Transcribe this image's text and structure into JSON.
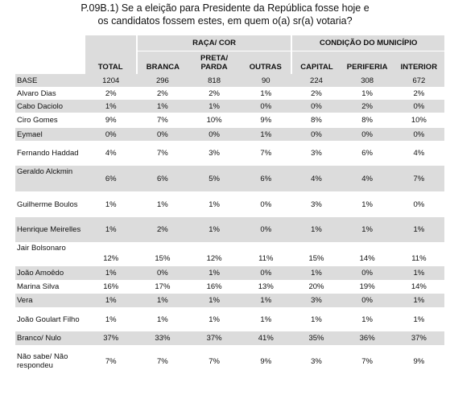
{
  "question": {
    "line1": "P.09B.1) Se a eleição para Presidente da República fosse hoje e",
    "line2": "os candidatos fossem estes, em quem o(a) sr(a) votaria?"
  },
  "header": {
    "group_raca": "RAÇA/ COR",
    "group_municipio": "CONDIÇÃO DO MUNICÍPIO",
    "columns": [
      "TOTAL",
      "BRANCA",
      "PRETA/ PARDA",
      "OUTRAS",
      "CAPITAL",
      "PERIFERIA",
      "INTERIOR"
    ]
  },
  "rows": [
    {
      "label": "BASE",
      "values": [
        "1204",
        "296",
        "818",
        "90",
        "224",
        "308",
        "672"
      ]
    },
    {
      "label": "Alvaro Dias",
      "values": [
        "2%",
        "2%",
        "2%",
        "1%",
        "2%",
        "1%",
        "2%"
      ]
    },
    {
      "label": "Cabo Daciolo",
      "values": [
        "1%",
        "1%",
        "1%",
        "0%",
        "0%",
        "2%",
        "0%"
      ]
    },
    {
      "label": "Ciro Gomes",
      "values": [
        "9%",
        "7%",
        "10%",
        "9%",
        "8%",
        "8%",
        "10%"
      ]
    },
    {
      "label": "Eymael",
      "values": [
        "0%",
        "0%",
        "0%",
        "1%",
        "0%",
        "0%",
        "0%"
      ]
    },
    {
      "label": "Fernando Haddad",
      "values": [
        "4%",
        "7%",
        "3%",
        "7%",
        "3%",
        "6%",
        "4%"
      ]
    },
    {
      "label": "Geraldo Alckmin",
      "values": [
        "6%",
        "6%",
        "5%",
        "6%",
        "4%",
        "4%",
        "7%"
      ]
    },
    {
      "label": "Guilherme Boulos",
      "values": [
        "1%",
        "1%",
        "1%",
        "0%",
        "3%",
        "1%",
        "0%"
      ]
    },
    {
      "label": "Henrique Meirelles",
      "values": [
        "1%",
        "2%",
        "1%",
        "0%",
        "1%",
        "1%",
        "1%"
      ]
    },
    {
      "label": "Jair Bolsonaro",
      "values": [
        "12%",
        "15%",
        "12%",
        "11%",
        "15%",
        "14%",
        "11%"
      ]
    },
    {
      "label": "João Amoêdo",
      "values": [
        "1%",
        "0%",
        "1%",
        "0%",
        "1%",
        "0%",
        "1%"
      ]
    },
    {
      "label": "Marina Silva",
      "values": [
        "16%",
        "17%",
        "16%",
        "13%",
        "20%",
        "19%",
        "14%"
      ]
    },
    {
      "label": "Vera",
      "values": [
        "1%",
        "1%",
        "1%",
        "1%",
        "3%",
        "0%",
        "1%"
      ]
    },
    {
      "label": "João Goulart Filho",
      "values": [
        "1%",
        "1%",
        "1%",
        "1%",
        "1%",
        "1%",
        "1%"
      ]
    },
    {
      "label": "Branco/ Nulo",
      "values": [
        "37%",
        "33%",
        "37%",
        "41%",
        "35%",
        "36%",
        "37%"
      ]
    },
    {
      "label": "Não sabe/ Não respondeu",
      "values": [
        "7%",
        "7%",
        "7%",
        "9%",
        "3%",
        "7%",
        "9%"
      ]
    }
  ],
  "colors": {
    "shade": "#dcdcdc",
    "background": "#ffffff"
  }
}
